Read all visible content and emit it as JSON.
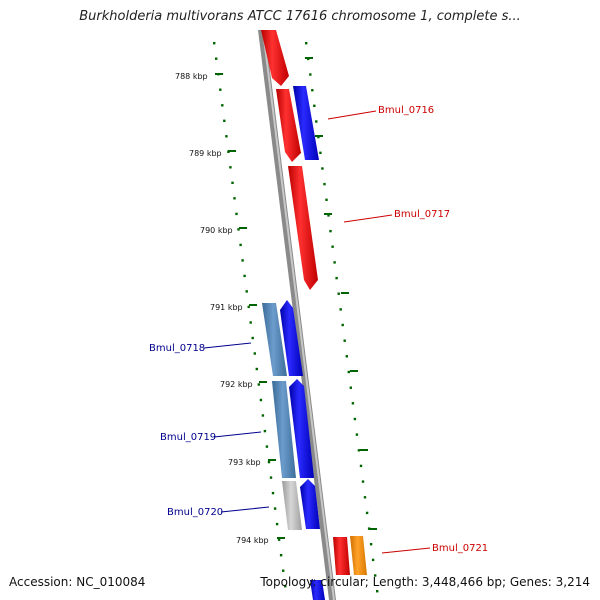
{
  "title": "Burkholderia multivorans ATCC 17616 chromosome 1, complete s...",
  "footer": {
    "accession": "Accession: NC_010084",
    "summary": "Topology: circular; Length: 3,448,466 bp; Genes: 3,214"
  },
  "ticks": [
    {
      "label": "788 kbp"
    },
    {
      "label": "789 kbp"
    },
    {
      "label": "790 kbp"
    },
    {
      "label": "791 kbp"
    },
    {
      "label": "792 kbp"
    },
    {
      "label": "793 kbp"
    },
    {
      "label": "794 kbp"
    }
  ],
  "genes": [
    {
      "name": "Bmul_0716",
      "color": "#cc0000"
    },
    {
      "name": "Bmul_0717",
      "color": "#cc0000"
    },
    {
      "name": "Bmul_0718",
      "color": "#00008b"
    },
    {
      "name": "Bmul_0719",
      "color": "#00008b"
    },
    {
      "name": "Bmul_0720",
      "color": "#00008b"
    },
    {
      "name": "Bmul_0721",
      "color": "#cc0000"
    }
  ],
  "colors": {
    "forward_cds": "#ff0000",
    "reverse_cds": "#0000ff",
    "rna": "#4682b4",
    "pseudo": "#b0b0b0",
    "other": "#ff8c00",
    "backbone": "#808080",
    "ruler": "#006400"
  }
}
